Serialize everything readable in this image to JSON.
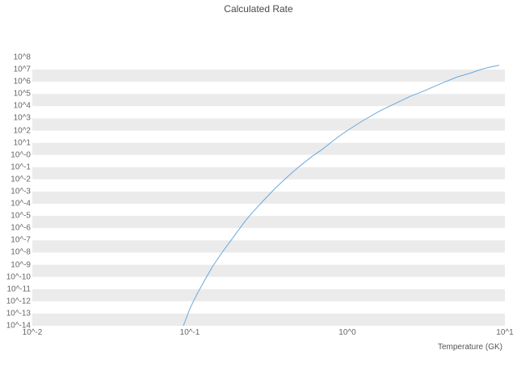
{
  "chart_data": {
    "type": "line",
    "title": "Calculated Rate",
    "xlabel": "Temperature (GK)",
    "ylabel": "",
    "x_scale": "log",
    "y_scale": "log",
    "x_range_log10": [
      -2,
      1
    ],
    "y_range_log10": [
      -14,
      8
    ],
    "x_tick_labels": [
      "10^-2",
      "10^-1",
      "10^0",
      "10^1"
    ],
    "x_tick_log10": [
      -2,
      -1,
      0,
      1
    ],
    "y_tick_labels": [
      "10^8",
      "10^7",
      "10^6",
      "10^5",
      "10^4",
      "10^3",
      "10^2",
      "10^1",
      "10^-0",
      "10^-1",
      "10^-2",
      "10^-3",
      "10^-4",
      "10^-5",
      "10^-6",
      "10^-7",
      "10^-8",
      "10^-9",
      "10^-10",
      "10^-11",
      "10^-12",
      "10^-13",
      "10^-14"
    ],
    "y_tick_log10": [
      8,
      7,
      6,
      5,
      4,
      3,
      2,
      1,
      0,
      -1,
      -2,
      -3,
      -4,
      -5,
      -6,
      -7,
      -8,
      -9,
      -10,
      -11,
      -12,
      -13,
      -14
    ],
    "grid": "horizontal-decade-bands",
    "band_colors": [
      "#ffffff",
      "#ebebeb"
    ],
    "legend": "none",
    "points_format": "[temperature_GK, log10_rate]",
    "series": [
      {
        "name": "calculated-rate",
        "color": "#6aa8dc",
        "points": [
          [
            0.091,
            -14.0
          ],
          [
            0.1,
            -12.6
          ],
          [
            0.11,
            -11.5
          ],
          [
            0.125,
            -10.2
          ],
          [
            0.14,
            -9.1
          ],
          [
            0.16,
            -8.0
          ],
          [
            0.18,
            -7.1
          ],
          [
            0.2,
            -6.3
          ],
          [
            0.225,
            -5.4
          ],
          [
            0.25,
            -4.7
          ],
          [
            0.3,
            -3.6
          ],
          [
            0.35,
            -2.7
          ],
          [
            0.4,
            -2.0
          ],
          [
            0.45,
            -1.4
          ],
          [
            0.5,
            -0.9
          ],
          [
            0.6,
            -0.1
          ],
          [
            0.7,
            0.5
          ],
          [
            0.8,
            1.1
          ],
          [
            0.9,
            1.6
          ],
          [
            1.0,
            2.0
          ],
          [
            1.25,
            2.8
          ],
          [
            1.6,
            3.6
          ],
          [
            2.0,
            4.2
          ],
          [
            2.5,
            4.8
          ],
          [
            3.0,
            5.2
          ],
          [
            4.0,
            5.9
          ],
          [
            5.0,
            6.4
          ],
          [
            6.0,
            6.7
          ],
          [
            7.0,
            7.0
          ],
          [
            8.0,
            7.2
          ],
          [
            9.2,
            7.35
          ]
        ]
      }
    ]
  }
}
